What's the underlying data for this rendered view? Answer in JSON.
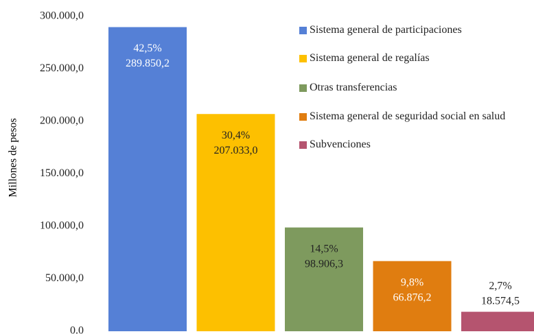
{
  "chart_data": {
    "type": "bar",
    "y_label": "Millones  de pesos",
    "series": [
      {
        "name": "Sistema general de participaciones",
        "color": "#5580d6",
        "label_color": "#ffffff",
        "values": [
          289850.2
        ],
        "value_labels": [
          "289.850,2"
        ],
        "percent_labels": [
          "42,5%"
        ]
      },
      {
        "name": "Sistema general de regalías",
        "color": "#fdc000",
        "label_color": "#222222",
        "values": [
          207033.0
        ],
        "value_labels": [
          "207.033,0"
        ],
        "percent_labels": [
          "30,4%"
        ]
      },
      {
        "name": "Otras transferencias",
        "color": "#7e9a5e",
        "label_color": "#222222",
        "values": [
          98906.3
        ],
        "value_labels": [
          "98.906,3"
        ],
        "percent_labels": [
          "14,5%"
        ]
      },
      {
        "name": "Sistema general de seguridad social en salud",
        "color": "#e07d10",
        "label_color": "#ffffff",
        "values": [
          66876.2
        ],
        "value_labels": [
          "66.876,2"
        ],
        "percent_labels": [
          "9,8%"
        ]
      },
      {
        "name": "Subvenciones",
        "color": "#b5546f",
        "label_color": "#222222",
        "values": [
          18574.5
        ],
        "value_labels": [
          "18.574,5"
        ],
        "percent_labels": [
          "2,7%"
        ]
      }
    ],
    "ylim": [
      0,
      300000
    ],
    "yticks": [
      {
        "value": 0,
        "label": "0.0"
      },
      {
        "value": 50000,
        "label": "50.000,0"
      },
      {
        "value": 100000,
        "label": "100.000,0"
      },
      {
        "value": 150000,
        "label": "150.000,0"
      },
      {
        "value": 200000,
        "label": "200.000,0"
      },
      {
        "value": 250000,
        "label": "250.000,0"
      },
      {
        "value": 300000,
        "label": "300.000,0"
      }
    ],
    "grid": false,
    "legend": "upper right"
  }
}
